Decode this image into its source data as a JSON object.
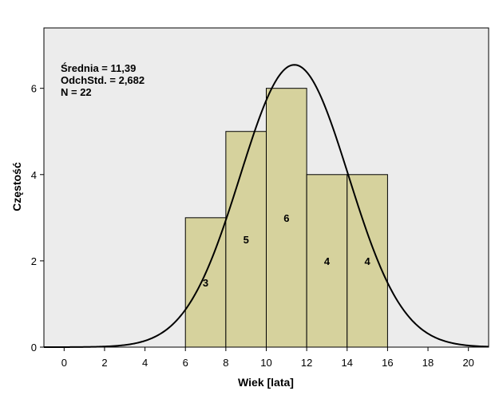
{
  "chart_data": {
    "type": "bar",
    "subtype": "histogram",
    "bins": [
      {
        "from": 6,
        "to": 8,
        "count": 3,
        "label": "3"
      },
      {
        "from": 8,
        "to": 10,
        "count": 5,
        "label": "5"
      },
      {
        "from": 10,
        "to": 12,
        "count": 6,
        "label": "6"
      },
      {
        "from": 12,
        "to": 14,
        "count": 4,
        "label": "4"
      },
      {
        "from": 14,
        "to": 16,
        "count": 4,
        "label": "4"
      }
    ],
    "xlabel": "Wiek [lata]",
    "ylabel": "Częstość",
    "xlim": [
      -1,
      21
    ],
    "ylim": [
      0,
      7.4
    ],
    "xticks": [
      0,
      2,
      4,
      6,
      8,
      10,
      12,
      14,
      16,
      18,
      20
    ],
    "xtick_labels": [
      "0",
      "2",
      "4",
      "6",
      "8",
      "10",
      "12",
      "14",
      "16",
      "18",
      "20"
    ],
    "yticks": [
      0,
      2,
      4,
      6
    ],
    "ytick_labels": [
      "0",
      "2",
      "4",
      "6"
    ],
    "normal_curve": {
      "mean": 11.39,
      "sd": 2.682,
      "n": 22,
      "bin_width": 2
    },
    "stats": {
      "mean_text": "Średnia = 11,39",
      "sd_text": "OdchStd. = 2,682",
      "n_text": "N = 22"
    },
    "colors": {
      "plot_background": "#ececec",
      "bar_fill": "#d6d29d",
      "bar_stroke": "#000000",
      "curve": "#000000"
    },
    "grid": false
  }
}
